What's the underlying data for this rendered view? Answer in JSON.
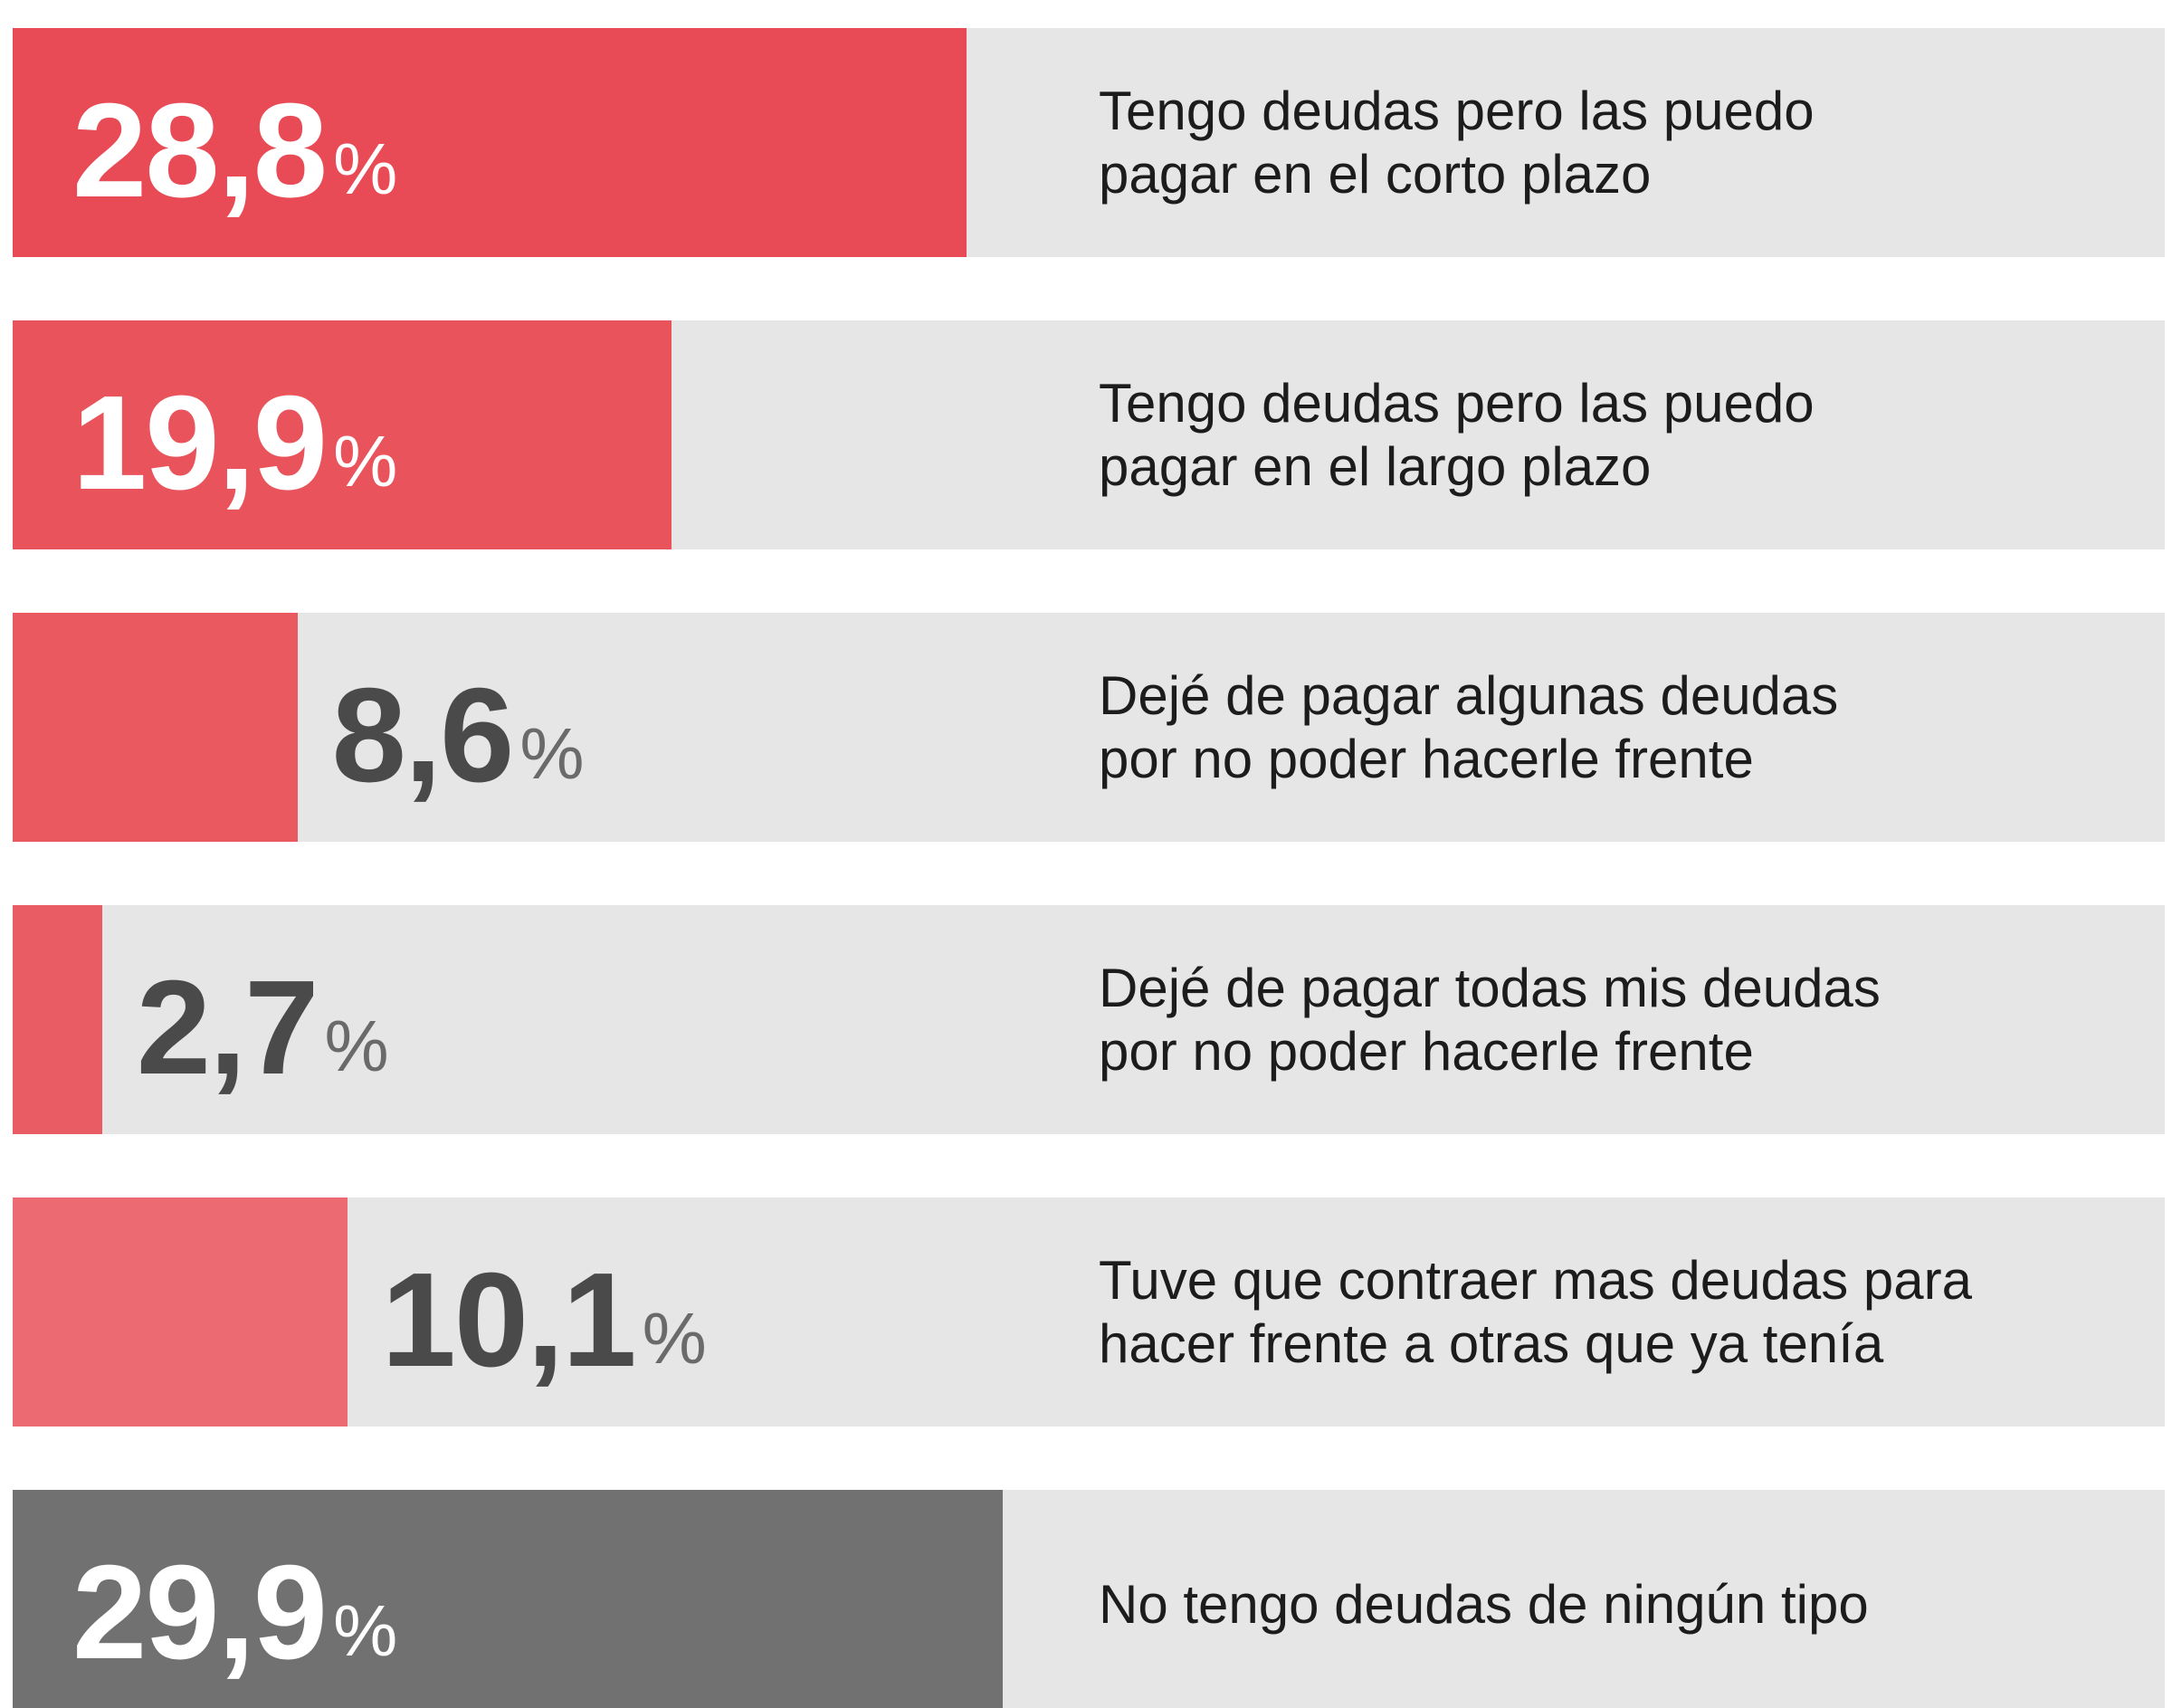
{
  "chart_data": {
    "type": "bar",
    "orientation": "horizontal",
    "categories": [
      "Tengo deudas pero las puedo\npagar en el corto plazo",
      "Tengo deudas pero las puedo\npagar en el largo plazo",
      "Dejé de pagar algunas deudas\npor no poder hacerle frente",
      "Dejé de pagar todas mis deudas\npor no poder hacerle frente",
      "Tuve que contraer mas deudas para\nhacer frente a otras que ya tenía",
      "No tengo deudas de ningún tipo"
    ],
    "values": [
      28.8,
      19.9,
      8.6,
      2.7,
      10.1,
      29.9
    ],
    "value_labels": [
      "28,8",
      "19,9",
      "8,6",
      "2,7",
      "10,1",
      "29,9"
    ],
    "unit": "%",
    "colors": [
      "#e94b56",
      "#e9545c",
      "#ea5960",
      "#ea5c63",
      "#ec6a72",
      "#717171"
    ],
    "track_color": "#e6e6e6",
    "xlim": [
      0,
      65
    ]
  }
}
